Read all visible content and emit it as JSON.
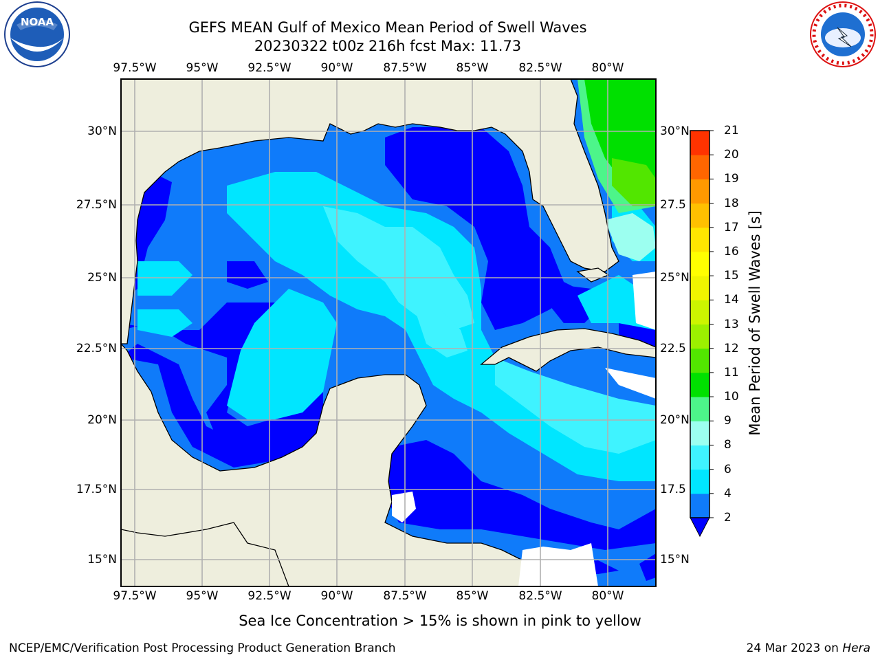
{
  "header": {
    "title_line1": "GEFS MEAN Gulf of Mexico Mean Period of Swell Waves",
    "title_line2": "20230322 t00z 216h fcst   Max: 11.73"
  },
  "logos": {
    "left": "NOAA",
    "right": "NATIONAL WEATHER SERVICE"
  },
  "map": {
    "lon_ticks": [
      "97.5°W",
      "95°W",
      "92.5°W",
      "90°W",
      "87.5°W",
      "85°W",
      "82.5°W",
      "80°W"
    ],
    "lat_ticks": [
      "30°N",
      "27.5°N",
      "25°N",
      "22.5°N",
      "20°N",
      "17.5°N",
      "15°N"
    ],
    "lat_ticks_right": [
      "30°N",
      "27.5",
      "25°N",
      "22.5",
      "20°N",
      "17.5",
      "15°N"
    ],
    "land_color": "#eeeedd",
    "grid_color": "#b0b0b0"
  },
  "colorbar": {
    "label": "Mean Period of Swell Waves [s]",
    "ticks": [
      "2",
      "4",
      "6",
      "8",
      "9",
      "10",
      "11",
      "12",
      "13",
      "14",
      "15",
      "16",
      "17",
      "18",
      "19",
      "20",
      "21"
    ],
    "colors": [
      "#0f7bfa",
      "#00e6ff",
      "#3ff3ff",
      "#9cfff0",
      "#4df58a",
      "#00e000",
      "#52e600",
      "#9cf000",
      "#ccf500",
      "#f0f500",
      "#ffff00",
      "#ffe600",
      "#ffc000",
      "#ff9900",
      "#ff6600",
      "#ff3300"
    ],
    "extend_color": "#0000ff"
  },
  "footer": {
    "note": "Sea Ice Concentration > 15% is shown in pink to yellow",
    "credit_left": "NCEP/EMC/Verification Post Processing Product Generation Branch",
    "credit_right_date": "24 Mar 2023 on ",
    "credit_right_host": "Hera"
  }
}
